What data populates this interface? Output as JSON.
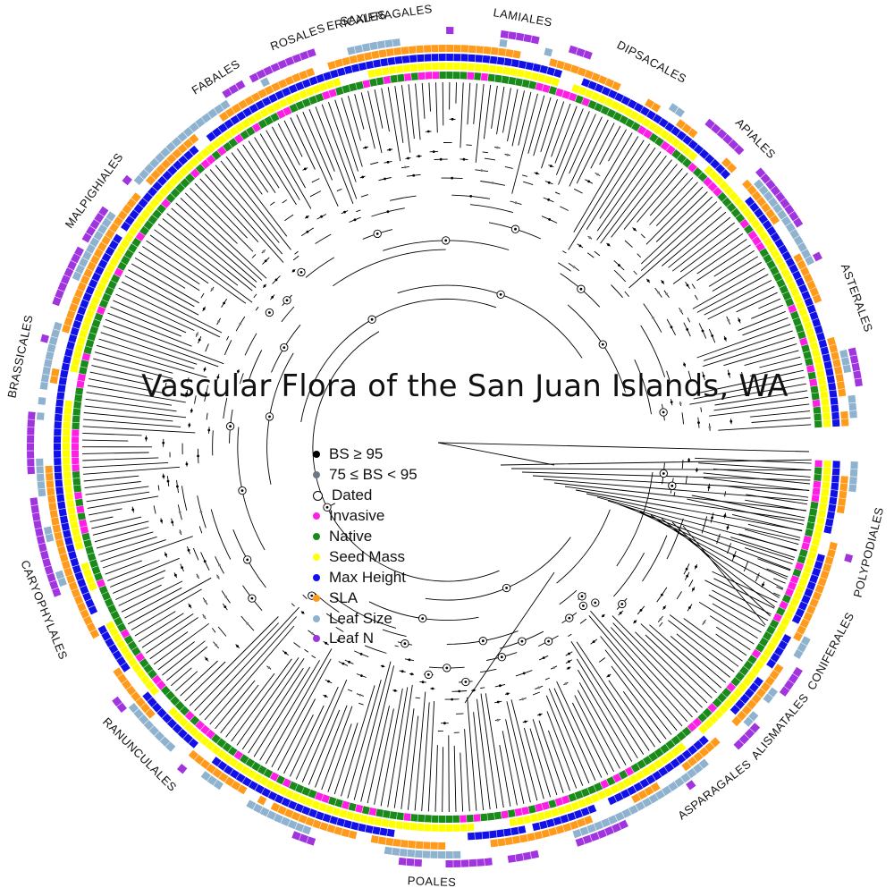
{
  "title": "Vascular Flora of the San Juan Islands, WA",
  "legend": [
    {
      "label": "BS ≥ 95",
      "color": "#000000",
      "marker": "filled-dot"
    },
    {
      "label": "75 ≤ BS < 95",
      "color": "#6f7787",
      "marker": "filled-dot"
    },
    {
      "label": "Dated",
      "color": "#000000",
      "marker": "open-circle"
    },
    {
      "label": "Invasive",
      "color": "#ff1fe4",
      "marker": "filled-dot"
    },
    {
      "label": "Native",
      "color": "#1a8a1a",
      "marker": "filled-dot"
    },
    {
      "label": "Seed Mass",
      "color": "#ffff00",
      "marker": "filled-dot"
    },
    {
      "label": "Max Height",
      "color": "#1212e8",
      "marker": "filled-dot"
    },
    {
      "label": "SLA",
      "color": "#ff9a1a",
      "marker": "filled-dot"
    },
    {
      "label": "Leaf Size",
      "color": "#8fb2cf",
      "marker": "filled-dot"
    },
    {
      "label": "Leaf N",
      "color": "#a035e0",
      "marker": "filled-dot"
    }
  ],
  "orders": [
    {
      "label": "ERICALES"
    },
    {
      "label": "LAMIALES"
    },
    {
      "label": "DIPSACALES"
    },
    {
      "label": "APIALES"
    },
    {
      "label": "ASTERALES"
    },
    {
      "label": "POLYPODIALES"
    },
    {
      "label": "CONIFERALES"
    },
    {
      "label": "ALISMATALES"
    },
    {
      "label": "ASPARAGALES"
    },
    {
      "label": "POALES"
    },
    {
      "label": "RANUNCULALES"
    },
    {
      "label": "CARYOPHYLALES"
    },
    {
      "label": "BRASSICALES"
    },
    {
      "label": "MALPIGHIALES"
    },
    {
      "label": "FABALES"
    },
    {
      "label": "ROSALES"
    },
    {
      "label": "SAXIFRAGALES"
    }
  ]
}
